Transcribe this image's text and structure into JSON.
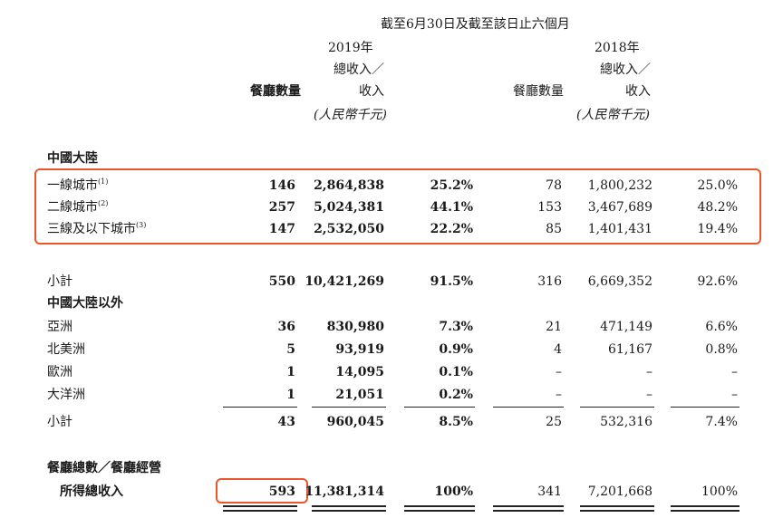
{
  "header": {
    "period": "截至6月30日及截至該日止六個月",
    "y2019": "2019年",
    "y2018": "2018年",
    "col_count": "餐廳數量",
    "col_rev_a": "總收入／",
    "col_rev_b": "收入",
    "col_unit": "(人民幣千元)"
  },
  "sections": {
    "mainland": "中國大陸",
    "outside": "中國大陸以外"
  },
  "rows": [
    {
      "label": "一線城市",
      "note": "(1)",
      "c19": "146",
      "r19": "2,864,838",
      "p19": "25.2%",
      "c18": "78",
      "r18": "1,800,232",
      "p18": "25.0%"
    },
    {
      "label": "二線城市",
      "note": "(2)",
      "c19": "257",
      "r19": "5,024,381",
      "p19": "44.1%",
      "c18": "153",
      "r18": "3,467,689",
      "p18": "48.2%"
    },
    {
      "label": "三線及以下城市",
      "note": "(3)",
      "c19": "147",
      "r19": "2,532,050",
      "p19": "22.2%",
      "c18": "85",
      "r18": "1,401,431",
      "p18": "19.4%"
    },
    {
      "label": "小計",
      "note": "",
      "c19": "550",
      "r19": "10,421,269",
      "p19": "91.5%",
      "c18": "316",
      "r18": "6,669,352",
      "p18": "92.6%"
    },
    {
      "label": "亞洲",
      "note": "",
      "c19": "36",
      "r19": "830,980",
      "p19": "7.3%",
      "c18": "21",
      "r18": "471,149",
      "p18": "6.6%"
    },
    {
      "label": "北美洲",
      "note": "",
      "c19": "5",
      "r19": "93,919",
      "p19": "0.9%",
      "c18": "4",
      "r18": "61,167",
      "p18": "0.8%"
    },
    {
      "label": "歐洲",
      "note": "",
      "c19": "1",
      "r19": "14,095",
      "p19": "0.1%",
      "c18": "–",
      "r18": "–",
      "p18": "–"
    },
    {
      "label": "大洋洲",
      "note": "",
      "c19": "1",
      "r19": "21,051",
      "p19": "0.2%",
      "c18": "–",
      "r18": "–",
      "p18": "–"
    },
    {
      "label": "小計",
      "note": "",
      "c19": "43",
      "r19": "960,045",
      "p19": "8.5%",
      "c18": "25",
      "r18": "532,316",
      "p18": "7.4%"
    }
  ],
  "total": {
    "label1": "餐廳總數／餐廳經營",
    "label2": "所得總收入",
    "c19": "593",
    "r19": "11,381,314",
    "p19": "100%",
    "c18": "341",
    "r18": "7,201,668",
    "p18": "100%"
  },
  "highlight_color": "#e8572a"
}
